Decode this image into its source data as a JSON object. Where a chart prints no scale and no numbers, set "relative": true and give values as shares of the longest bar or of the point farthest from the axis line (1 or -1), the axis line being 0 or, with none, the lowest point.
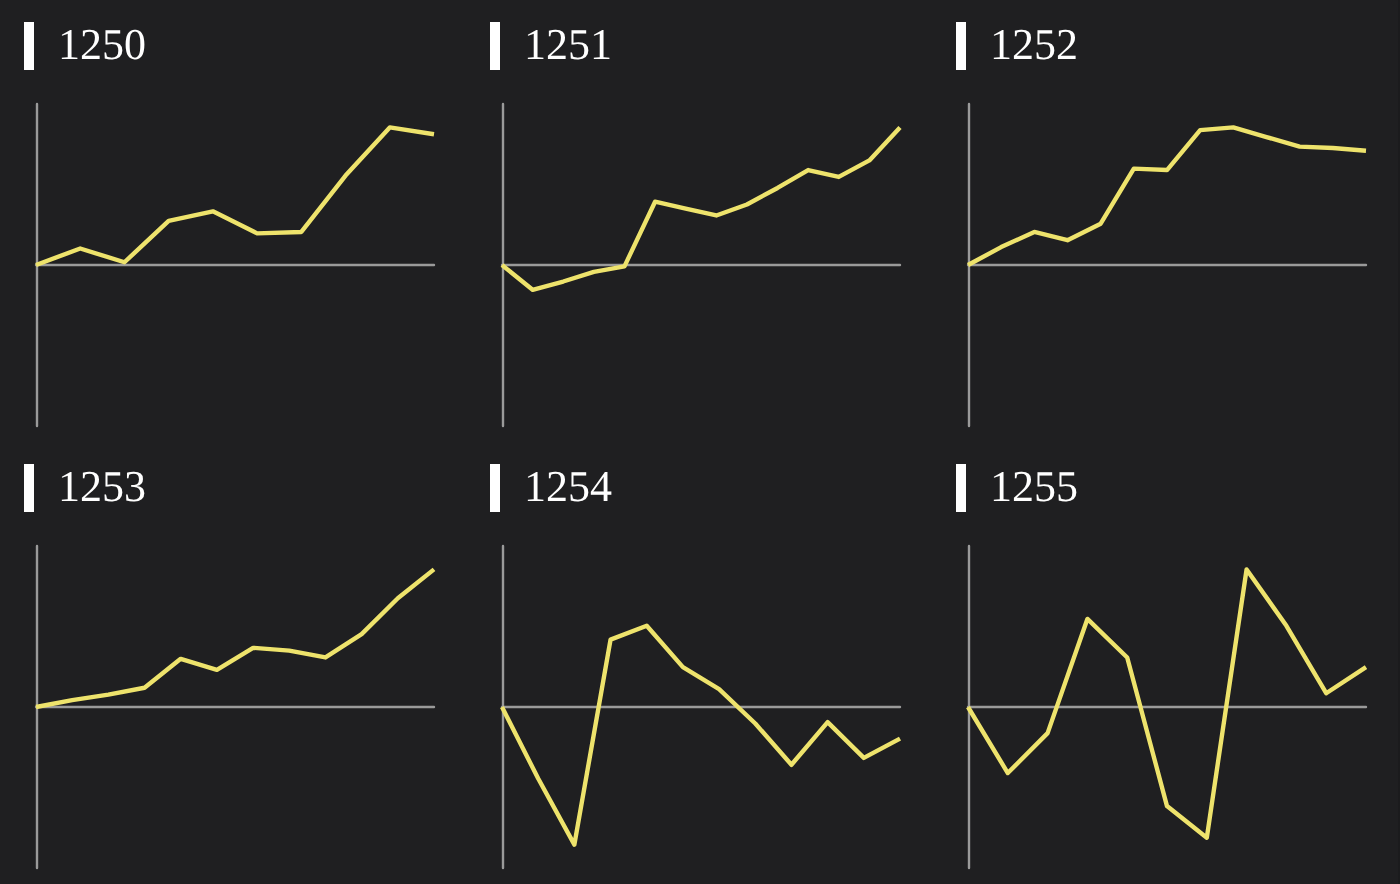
{
  "chart_data": [
    {
      "type": "line",
      "title": "1250",
      "categories": [
        null,
        null,
        null,
        null,
        null,
        null,
        null,
        null,
        null,
        null
      ],
      "values": [
        0,
        0.12,
        0.02,
        0.32,
        0.39,
        0.23,
        0.24,
        0.65,
        1,
        0.95
      ],
      "color": "#eee36c",
      "relative": true
    },
    {
      "type": "line",
      "title": "1251",
      "categories": [
        null,
        null,
        null,
        null,
        null,
        null,
        null,
        null,
        null,
        null,
        null,
        null,
        null,
        null
      ],
      "values": [
        0,
        -0.18,
        -0.12,
        -0.05,
        -0.01,
        0.46,
        0.41,
        0.36,
        0.44,
        0.56,
        0.69,
        0.64,
        0.76,
        1
      ],
      "color": "#eee36c",
      "relative": true
    },
    {
      "type": "line",
      "title": "1252",
      "categories": [
        null,
        null,
        null,
        null,
        null,
        null,
        null,
        null,
        null,
        null,
        null,
        null,
        null
      ],
      "values": [
        0,
        0.13,
        0.24,
        0.18,
        0.3,
        0.7,
        0.69,
        0.98,
        1,
        0.93,
        0.86,
        0.85,
        0.83
      ],
      "color": "#eee36c",
      "relative": true
    },
    {
      "type": "line",
      "title": "1253",
      "categories": [
        null,
        null,
        null,
        null,
        null,
        null,
        null,
        null,
        null,
        null,
        null,
        null
      ],
      "values": [
        0,
        0.05,
        0.09,
        0.14,
        0.35,
        0.27,
        0.43,
        0.41,
        0.36,
        0.53,
        0.79,
        1
      ],
      "color": "#eee36c",
      "relative": true
    },
    {
      "type": "line",
      "title": "1254",
      "categories": [
        null,
        null,
        null,
        null,
        null,
        null,
        null,
        null,
        null,
        null,
        null,
        null
      ],
      "values": [
        0,
        -0.52,
        -1,
        0.49,
        0.59,
        0.29,
        0.13,
        -0.12,
        -0.42,
        -0.11,
        -0.37,
        -0.23
      ],
      "color": "#eee36c",
      "relative": true
    },
    {
      "type": "line",
      "title": "1255",
      "categories": [
        null,
        null,
        null,
        null,
        null,
        null,
        null,
        null,
        null,
        null,
        null
      ],
      "values": [
        0,
        -0.48,
        -0.19,
        0.64,
        0.36,
        -0.72,
        -0.95,
        1,
        0.59,
        0.1,
        0.29
      ],
      "color": "#eee36c",
      "relative": true
    }
  ]
}
